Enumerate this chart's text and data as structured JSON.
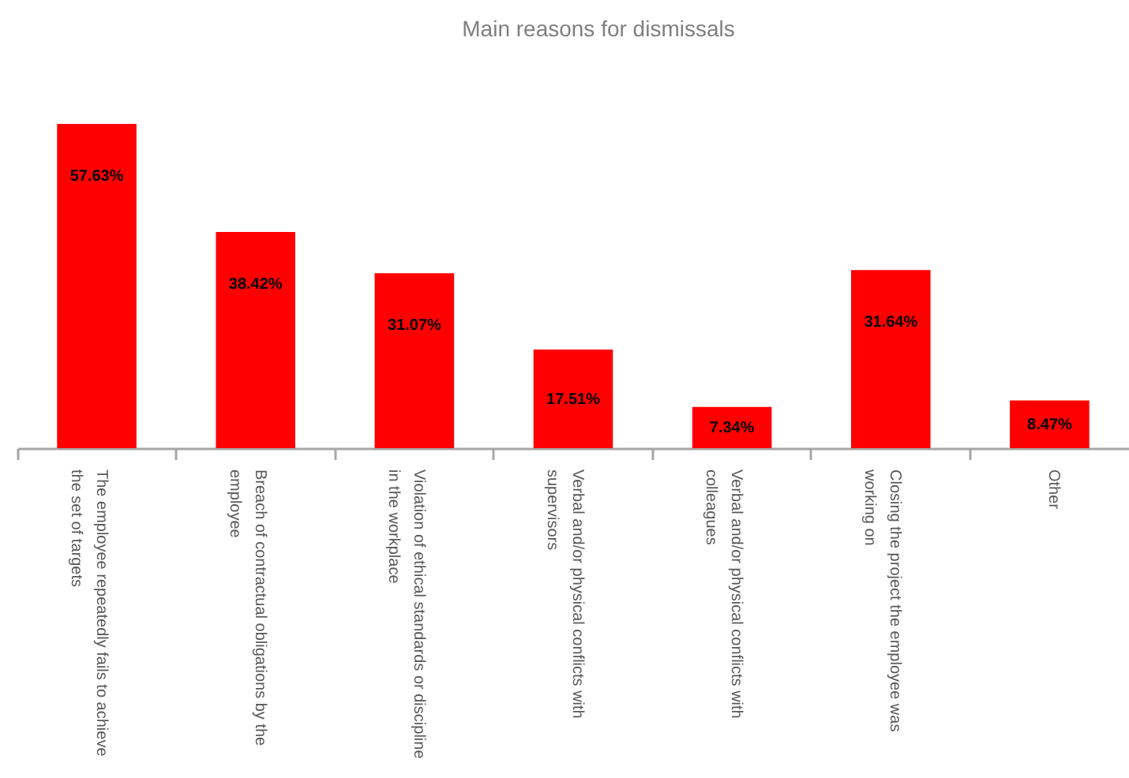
{
  "chart_data": {
    "type": "bar",
    "title": "Main reasons for dismissals",
    "categories": [
      "The employee repeatedly fails to achieve the set of targets",
      "Breach of contractual obligations by the employee",
      "Violation of ethical standards or discipline in the workplace",
      "Verbal and/or physical conflicts with supervisors",
      "Verbal and/or physical conflicts with colleagues",
      "Closing the project the employee was working on",
      "Other"
    ],
    "values": [
      57.63,
      38.42,
      31.07,
      17.51,
      7.34,
      31.64,
      8.47
    ],
    "value_labels": [
      "57.63%",
      "38.42%",
      "31.07%",
      "17.51%",
      "7.34%",
      "31.64%",
      "8.47%"
    ],
    "color": "#ff0000",
    "tick_labels": "x"
  }
}
